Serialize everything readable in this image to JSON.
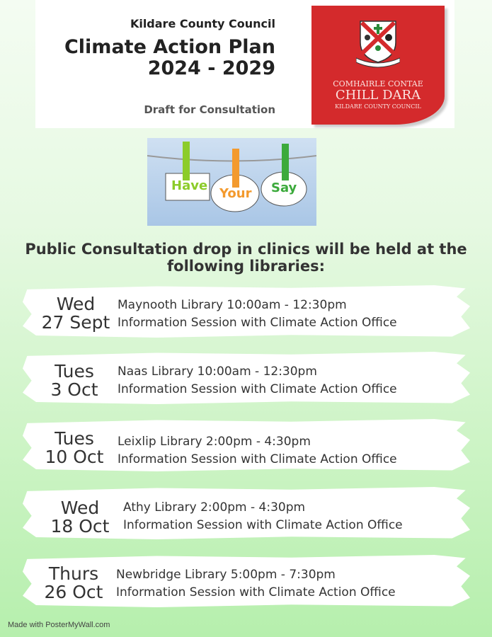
{
  "header": {
    "council": "Kildare County Council",
    "title_line1": "Climate Action Plan",
    "title_line2": "2024 - 2029",
    "subtitle": "Draft for Consultation"
  },
  "logo": {
    "line1": "COMHAIRLE CONTAE",
    "line2": "CHILL DARA",
    "line3": "KILDARE COUNTY COUNCIL",
    "color": "#d42a2c"
  },
  "image": {
    "words": [
      "Have",
      "Your",
      "Say"
    ]
  },
  "heading": {
    "line1": "Public Consultation drop in clinics will be held at the",
    "line2": "following libraries:"
  },
  "clinics": [
    {
      "day": "Wed",
      "date": "27 Sept",
      "venue": "Maynooth Library 10:00am - 12:30pm",
      "session": "Information Session with Climate Action Office"
    },
    {
      "day": "Tues",
      "date": "3 Oct",
      "venue": "Naas Library 10:00am - 12:30pm",
      "session": "Information Session with Climate Action Office"
    },
    {
      "day": "Tues",
      "date": "10 Oct",
      "venue": "Leixlip Library 2:00pm - 4:30pm",
      "session": "Information Session with Climate Action Office"
    },
    {
      "day": "Wed",
      "date": "18 Oct",
      "venue": "Athy Library 2:00pm - 4:30pm",
      "session": "Information Session with Climate Action Office"
    },
    {
      "day": "Thurs",
      "date": "26 Oct",
      "venue": "Newbridge Library 5:00pm - 7:30pm",
      "session": "Information Session with Climate Action Office"
    }
  ],
  "footer": "Made with PosterMyWall.com"
}
